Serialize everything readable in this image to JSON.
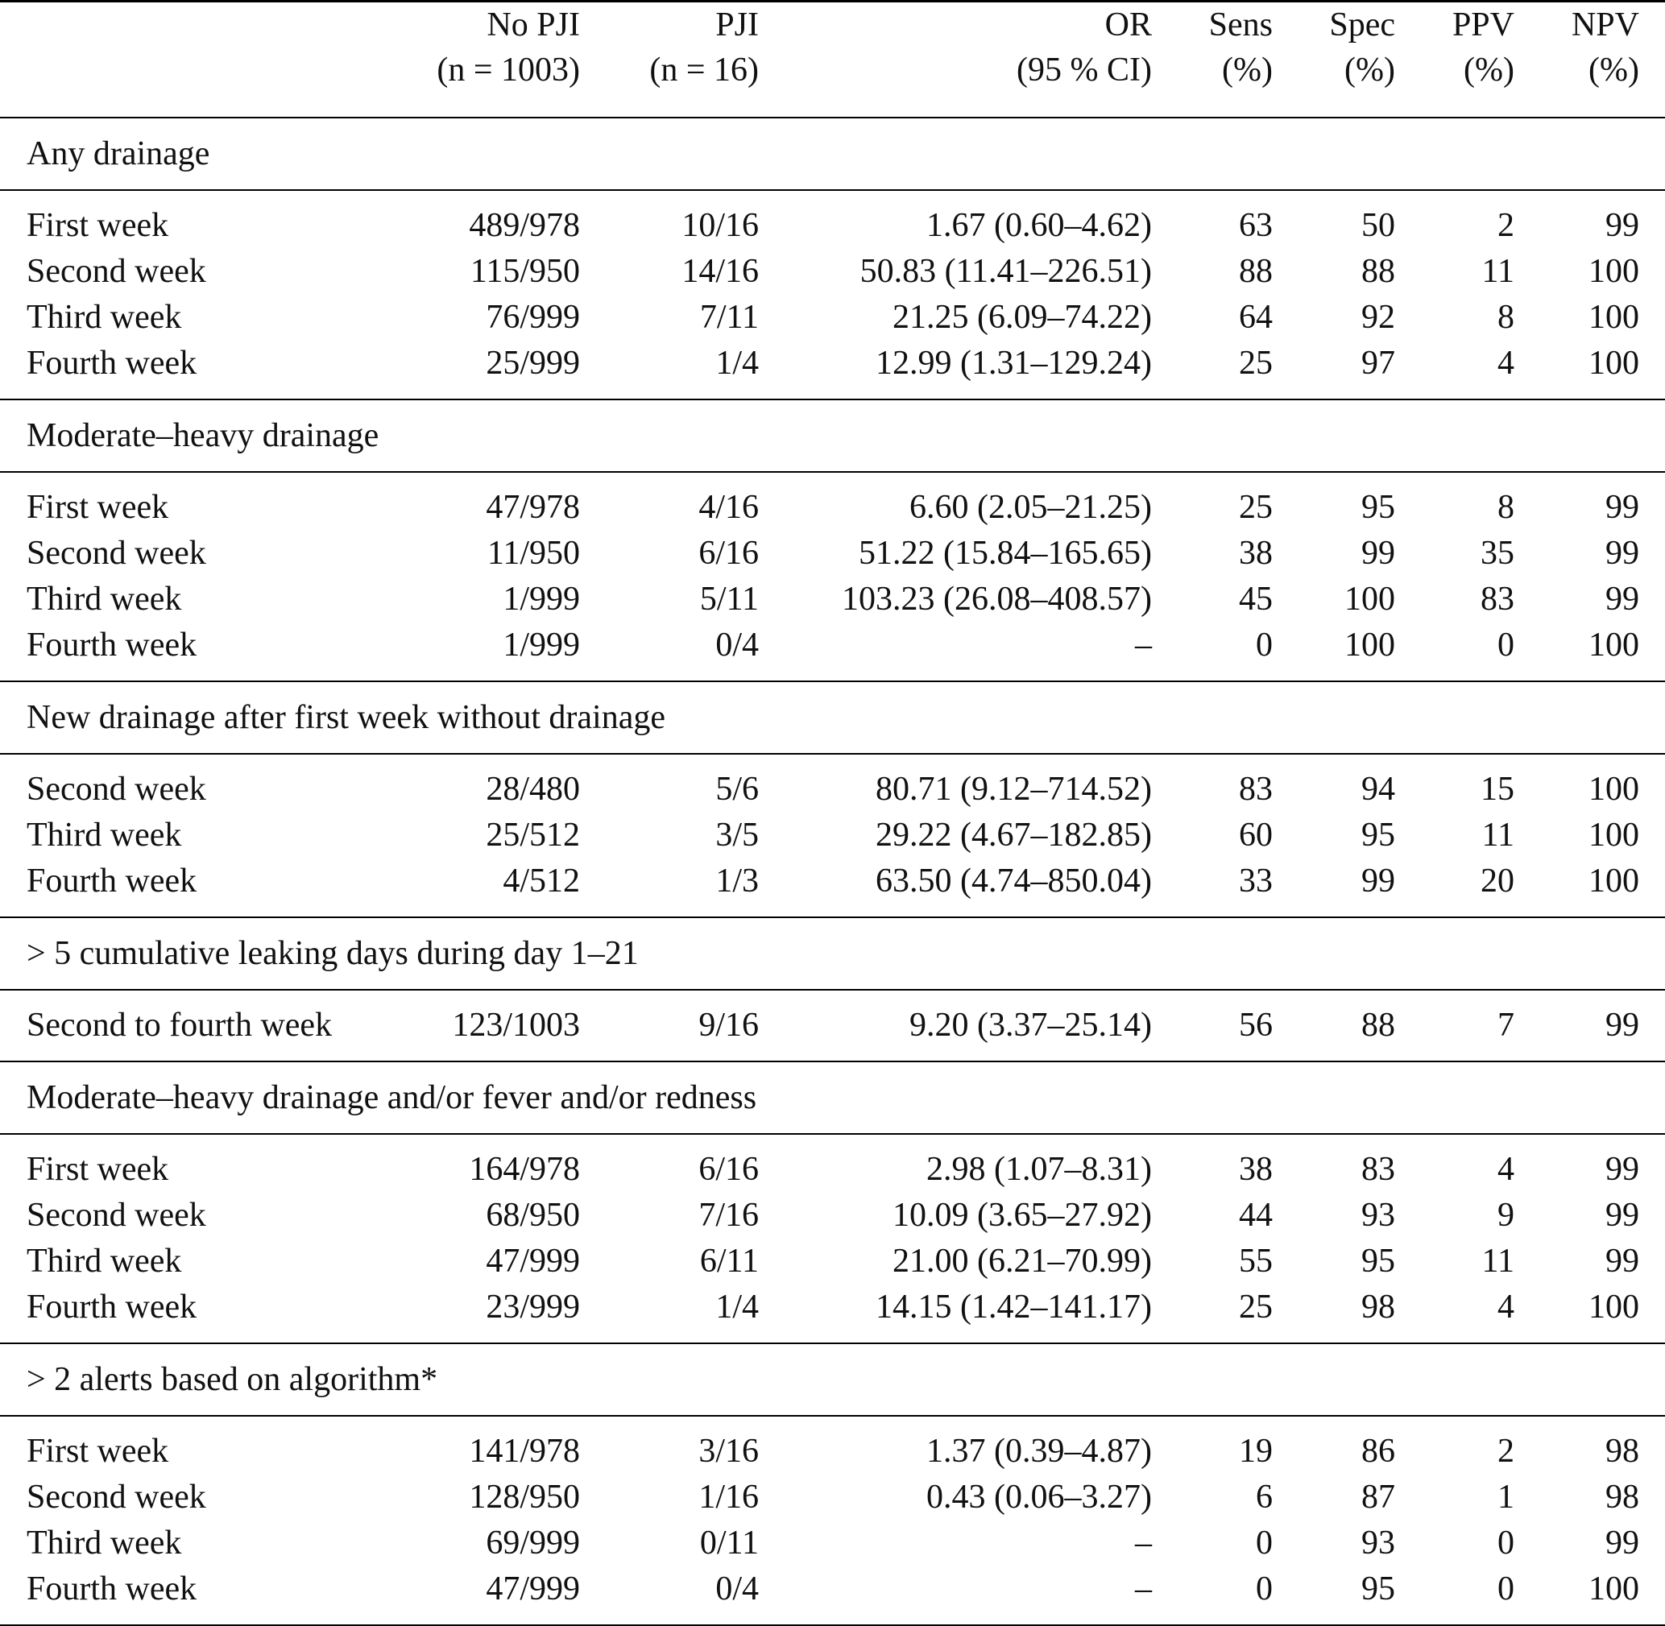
{
  "table": {
    "columns": [
      {
        "top": "No PJI",
        "bottom": "(n = 1003)"
      },
      {
        "top": "PJI",
        "bottom": "(n = 16)"
      },
      {
        "top": "OR",
        "bottom": "(95 % CI)"
      },
      {
        "top": "Sens",
        "bottom": "(%)"
      },
      {
        "top": "Spec",
        "bottom": "(%)"
      },
      {
        "top": "PPV",
        "bottom": "(%)"
      },
      {
        "top": "NPV",
        "bottom": "(%)"
      }
    ],
    "sections": [
      {
        "title": "Any drainage",
        "rows": [
          [
            "First week",
            "489/978",
            "10/16",
            "1.67 (0.60–4.62)",
            "63",
            "50",
            "2",
            "99"
          ],
          [
            "Second week",
            "115/950",
            "14/16",
            "50.83 (11.41–226.51)",
            "88",
            "88",
            "11",
            "100"
          ],
          [
            "Third week",
            "76/999",
            "7/11",
            "21.25 (6.09–74.22)",
            "64",
            "92",
            "8",
            "100"
          ],
          [
            "Fourth week",
            "25/999",
            "1/4",
            "12.99 (1.31–129.24)",
            "25",
            "97",
            "4",
            "100"
          ]
        ]
      },
      {
        "title": "Moderate–heavy drainage",
        "rows": [
          [
            "First week",
            "47/978",
            "4/16",
            "6.60 (2.05–21.25)",
            "25",
            "95",
            "8",
            "99"
          ],
          [
            "Second week",
            "11/950",
            "6/16",
            "51.22 (15.84–165.65)",
            "38",
            "99",
            "35",
            "99"
          ],
          [
            "Third week",
            "1/999",
            "5/11",
            "103.23 (26.08–408.57)",
            "45",
            "100",
            "83",
            "99"
          ],
          [
            "Fourth week",
            "1/999",
            "0/4",
            "–",
            "0",
            "100",
            "0",
            "100"
          ]
        ]
      },
      {
        "title": "New drainage after first week without drainage",
        "rows": [
          [
            "Second week",
            "28/480",
            "5/6",
            "80.71 (9.12–714.52)",
            "83",
            "94",
            "15",
            "100"
          ],
          [
            "Third week",
            "25/512",
            "3/5",
            "29.22 (4.67–182.85)",
            "60",
            "95",
            "11",
            "100"
          ],
          [
            "Fourth week",
            "4/512",
            "1/3",
            "63.50 (4.74–850.04)",
            "33",
            "99",
            "20",
            "100"
          ]
        ]
      },
      {
        "title": "> 5 cumulative leaking days during day 1–21",
        "rows": [
          [
            "Second to fourth week",
            "123/1003",
            "9/16",
            "9.20 (3.37–25.14)",
            "56",
            "88",
            "7",
            "99"
          ]
        ]
      },
      {
        "title": "Moderate–heavy drainage and/or fever and/or redness",
        "rows": [
          [
            "First week",
            "164/978",
            "6/16",
            "2.98 (1.07–8.31)",
            "38",
            "83",
            "4",
            "99"
          ],
          [
            "Second week",
            "68/950",
            "7/16",
            "10.09 (3.65–27.92)",
            "44",
            "93",
            "9",
            "99"
          ],
          [
            "Third week",
            "47/999",
            "6/11",
            "21.00 (6.21–70.99)",
            "55",
            "95",
            "11",
            "99"
          ],
          [
            "Fourth week",
            "23/999",
            "1/4",
            "14.15 (1.42–141.17)",
            "25",
            "98",
            "4",
            "100"
          ]
        ]
      },
      {
        "title": "> 2 alerts based on algorithm*",
        "rows": [
          [
            "First week",
            "141/978",
            "3/16",
            "1.37 (0.39–4.87)",
            "19",
            "86",
            "2",
            "98"
          ],
          [
            "Second week",
            "128/950",
            "1/16",
            "0.43 (0.06–3.27)",
            "6",
            "87",
            "1",
            "98"
          ],
          [
            "Third week",
            "69/999",
            "0/11",
            "–",
            "0",
            "93",
            "0",
            "99"
          ],
          [
            "Fourth week",
            "47/999",
            "0/4",
            "–",
            "0",
            "95",
            "0",
            "100"
          ]
        ]
      }
    ]
  }
}
